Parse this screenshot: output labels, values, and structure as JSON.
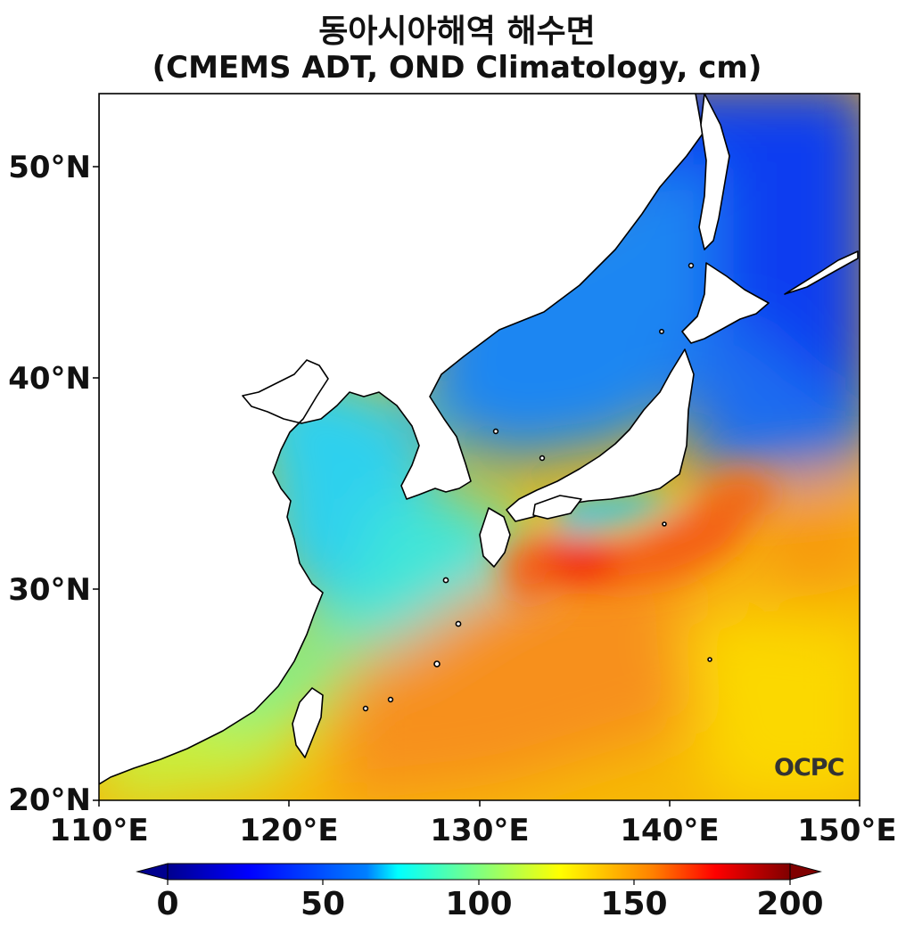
{
  "title": {
    "line1": "동아시아해역 해수면",
    "line2": "(CMEMS ADT, OND Climatology, cm)"
  },
  "map": {
    "lon_range": [
      110,
      150
    ],
    "lat_range": [
      20,
      53.5
    ],
    "lat_ticks": [
      "50°N",
      "40°N",
      "30°N",
      "20°N"
    ],
    "lon_ticks": [
      "110°E",
      "120°E",
      "130°E",
      "140°E",
      "150°E"
    ],
    "watermark": "OCPC",
    "colors": {
      "yellow_sea": "#2fd0ee",
      "east_sea": "#1e86f2",
      "north_pacific": "#0a3ef0",
      "kuroshio_core": "#f22c10",
      "subtropical": "#f9b205",
      "south_china_coast": "#b8f243",
      "land": "#ffffff"
    }
  },
  "colorbar": {
    "min": 0,
    "max": 200,
    "extend": "both",
    "tick_labels": [
      "0",
      "50",
      "100",
      "150",
      "200"
    ],
    "stops": [
      "#00008f",
      "#0000ff",
      "#0080ff",
      "#00ffff",
      "#80ff80",
      "#ffff00",
      "#ff8000",
      "#ff0000",
      "#800000"
    ]
  }
}
